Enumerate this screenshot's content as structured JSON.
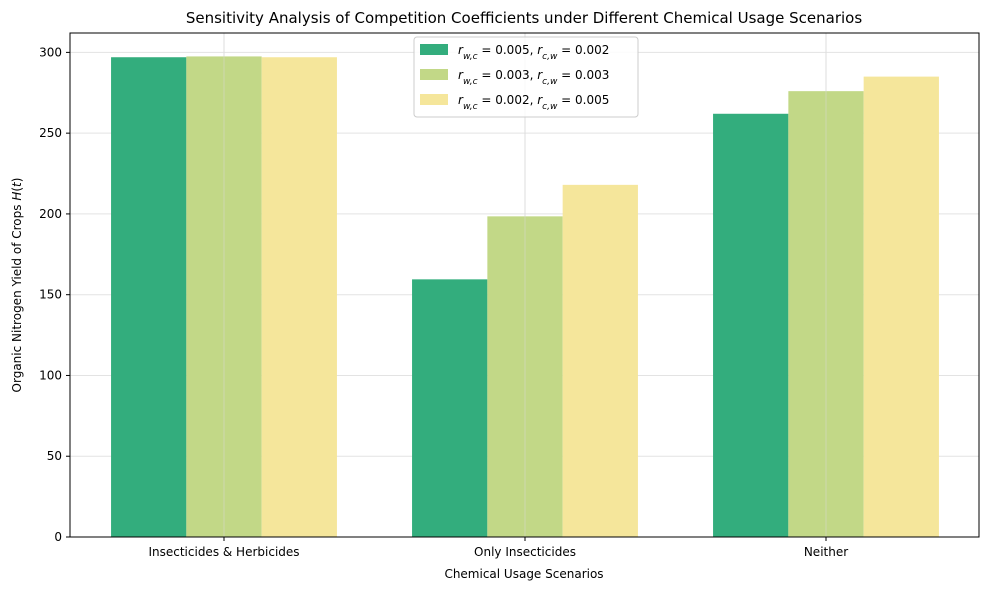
{
  "chart_data": {
    "type": "bar",
    "title": "Sensitivity Analysis of Competition Coefficients under Different Chemical Usage Scenarios",
    "xlabel": "Chemical Usage Scenarios",
    "ylabel": "Organic Nitrogen Yield of Crops H(t)",
    "categories": [
      "Insecticides & Herbicides",
      "Only Insecticides",
      "Neither"
    ],
    "ylim": [
      0,
      312
    ],
    "yticks": [
      0,
      50,
      100,
      150,
      200,
      250,
      300
    ],
    "grid": true,
    "legend_position": "top-center",
    "series": [
      {
        "name": "r_w,c = 0.005, r_c,w = 0.002",
        "color": "#33ad7d",
        "values": [
          297,
          159.5,
          262
        ]
      },
      {
        "name": "r_w,c = 0.003, r_c,w = 0.003",
        "color": "#c2d887",
        "values": [
          297.5,
          198.5,
          276
        ]
      },
      {
        "name": "r_w,c = 0.002, r_c,w = 0.005",
        "color": "#f5e69b",
        "values": [
          297,
          218,
          285
        ]
      }
    ]
  }
}
